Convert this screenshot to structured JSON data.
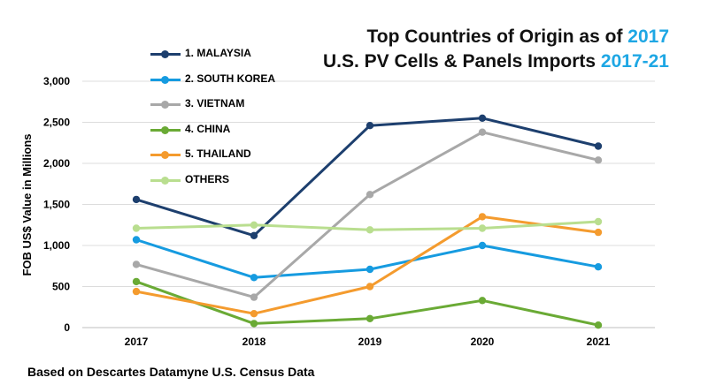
{
  "chart_data": {
    "type": "line",
    "title_line1_prefix": "Top Countries of Origin as of ",
    "title_line1_accent": "2017",
    "title_line2_prefix": "U.S. PV Cells & Panels Imports ",
    "title_line2_accent": "2017-21",
    "accent_color": "#1ea7e4",
    "xlabel": "",
    "ylabel": "FOB US$ Value in Millions",
    "x": [
      "2017",
      "2018",
      "2019",
      "2020",
      "2021"
    ],
    "y_ticks": [
      "0",
      "500",
      "1,000",
      "1,500",
      "2,000",
      "2,500",
      "3,000"
    ],
    "y_tick_values": [
      0,
      500,
      1000,
      1500,
      2000,
      2500,
      3000
    ],
    "ylim": [
      0,
      3000
    ],
    "grid": true,
    "legend_position": "top-left",
    "series": [
      {
        "name": "1. MALAYSIA",
        "color": "#1d3f6e",
        "values": [
          1560,
          1120,
          2460,
          2550,
          2210
        ]
      },
      {
        "name": "2. SOUTH KOREA",
        "color": "#169be0",
        "values": [
          1070,
          610,
          710,
          1000,
          740
        ]
      },
      {
        "name": "3. VIETNAM",
        "color": "#a8a8a8",
        "values": [
          770,
          370,
          1620,
          2380,
          2040
        ]
      },
      {
        "name": "4. CHINA",
        "color": "#6aaa35",
        "values": [
          560,
          50,
          110,
          330,
          30
        ]
      },
      {
        "name": "5. THAILAND",
        "color": "#f49b2e",
        "values": [
          440,
          170,
          500,
          1350,
          1160
        ]
      },
      {
        "name": "OTHERS",
        "color": "#b9de8f",
        "values": [
          1210,
          1250,
          1190,
          1210,
          1290
        ]
      }
    ]
  },
  "source_note": "Based on Descartes Datamyne U.S. Census Data"
}
